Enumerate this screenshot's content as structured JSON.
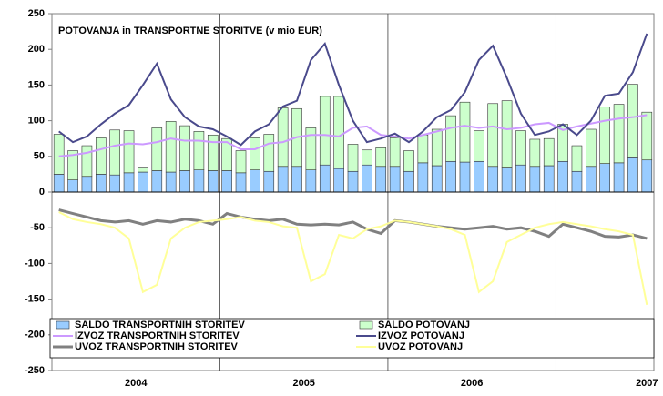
{
  "chart_data": {
    "type": "bar",
    "title": "POTOVANJA in TRANSPORTNE STORITVE (v mio EUR)",
    "categories": [
      null,
      null,
      null,
      null,
      null,
      null,
      null,
      null,
      null,
      null,
      null,
      null,
      null,
      null,
      null,
      null,
      null,
      null,
      null,
      null,
      null,
      null,
      null,
      null,
      null,
      null,
      null,
      null,
      null,
      null,
      null,
      null,
      null,
      null,
      null,
      null,
      null,
      null,
      null,
      null,
      null,
      null,
      null
    ],
    "xticks": [
      {
        "value": 5.5,
        "label": "2004"
      },
      {
        "value": 17.5,
        "label": "2005"
      },
      {
        "value": 29.5,
        "label": "2006"
      },
      {
        "value": 42,
        "label": "2007"
      }
    ],
    "xgrid": [
      11.5,
      23.5,
      35.5
    ],
    "ylim": [
      -250,
      250
    ],
    "yticks": [
      -250,
      -200,
      -150,
      -100,
      -50,
      0,
      50,
      100,
      150,
      200,
      250
    ],
    "legend": "bottom",
    "series": [
      {
        "name": "SALDO TRANSPORTNIH STORITEV",
        "type": "bar",
        "color": "#99ccff",
        "values": [
          25,
          17,
          22,
          25,
          24,
          27,
          28,
          30,
          28,
          30,
          31,
          30,
          30,
          27,
          31,
          29,
          36,
          36,
          31,
          38,
          33,
          29,
          38,
          36,
          36,
          29,
          41,
          37,
          43,
          42,
          43,
          36,
          35,
          38,
          36,
          37,
          43,
          29,
          36,
          40,
          41,
          48,
          45
        ]
      },
      {
        "name": "SALDO POTOVANJ",
        "type": "bar",
        "color": "#ccffcc",
        "values": [
          56,
          41,
          43,
          51,
          63,
          59,
          7,
          60,
          71,
          63,
          54,
          50,
          45,
          31,
          45,
          52,
          82,
          81,
          59,
          96,
          101,
          38,
          21,
          26,
          40,
          29,
          39,
          51,
          64,
          84,
          43,
          88,
          93,
          48,
          38,
          38,
          52,
          36,
          52,
          79,
          82,
          103,
          67
        ]
      },
      {
        "name": "IZVOZ TRANSPORTNIH STORITEV",
        "type": "line",
        "color": "#cc99ff",
        "values": [
          50,
          52,
          55,
          60,
          65,
          68,
          67,
          70,
          75,
          72,
          72,
          70,
          70,
          60,
          60,
          68,
          70,
          77,
          80,
          80,
          78,
          90,
          92,
          80,
          78,
          75,
          80,
          85,
          90,
          93,
          90,
          92,
          88,
          90,
          95,
          97,
          87,
          92,
          96,
          100,
          103,
          105,
          108
        ]
      },
      {
        "name": "IZVOZ POTOVANJ",
        "type": "line",
        "color": "#4a4a8c",
        "values": [
          85,
          70,
          78,
          95,
          110,
          122,
          150,
          180,
          130,
          105,
          92,
          88,
          78,
          66,
          85,
          95,
          120,
          128,
          185,
          208,
          150,
          100,
          70,
          75,
          82,
          70,
          85,
          105,
          115,
          140,
          185,
          205,
          160,
          110,
          80,
          85,
          95,
          80,
          100,
          135,
          138,
          168,
          222
        ]
      },
      {
        "name": "UVOZ TRANSPORTNIH STORITEV",
        "type": "line",
        "color": "#808080",
        "values": [
          -25,
          -30,
          -35,
          -40,
          -42,
          -40,
          -45,
          -40,
          -42,
          -38,
          -40,
          -45,
          -30,
          -35,
          -38,
          -40,
          -38,
          -45,
          -46,
          -45,
          -46,
          -42,
          -52,
          -58,
          -40,
          -42,
          -45,
          -48,
          -50,
          -52,
          -50,
          -48,
          -52,
          -50,
          -55,
          -62,
          -45,
          -50,
          -55,
          -62,
          -63,
          -60,
          -65
        ]
      },
      {
        "name": "UVOZ POTOVANJ",
        "type": "line",
        "color": "#ffff99",
        "values": [
          -28,
          -38,
          -42,
          -45,
          -50,
          -65,
          -140,
          -130,
          -65,
          -50,
          -42,
          -40,
          -38,
          -35,
          -40,
          -42,
          -48,
          -50,
          -125,
          -115,
          -60,
          -65,
          -52,
          -48,
          -40,
          -42,
          -45,
          -48,
          -52,
          -60,
          -140,
          -125,
          -70,
          -60,
          -50,
          -45,
          -42,
          -45,
          -48,
          -52,
          -55,
          -60,
          -158
        ]
      }
    ]
  }
}
